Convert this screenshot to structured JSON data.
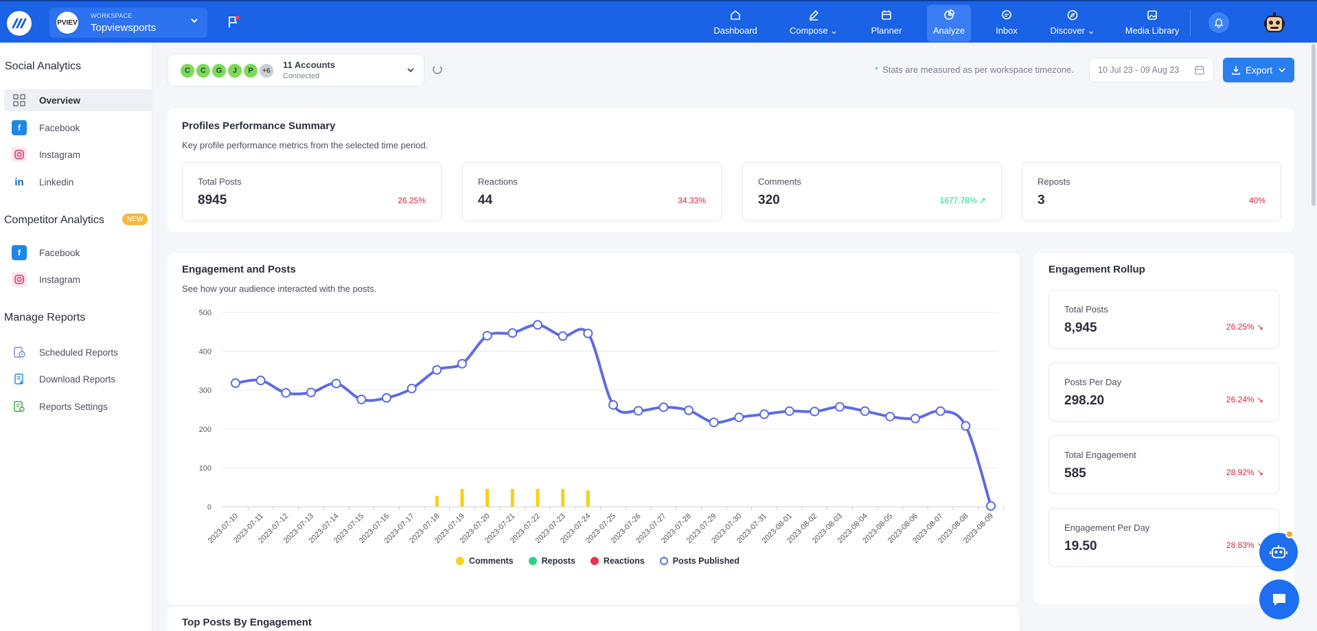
{
  "topbar": {
    "workspace_kicker": "WORKSPACE",
    "workspace_name": "Topviewsports",
    "workspace_avatar_text": "PVIEV",
    "nav": [
      {
        "label": "Dashboard",
        "icon": "home-icon"
      },
      {
        "label": "Compose",
        "icon": "pencil-icon",
        "has_dropdown": true
      },
      {
        "label": "Planner",
        "icon": "calendar-icon"
      },
      {
        "label": "Analyze",
        "icon": "analytics-icon",
        "active": true
      },
      {
        "label": "Inbox",
        "icon": "chat-bubble-icon"
      },
      {
        "label": "Discover",
        "icon": "compass-icon",
        "has_dropdown": true
      },
      {
        "label": "Media Library",
        "icon": "image-icon"
      }
    ],
    "color": "#1a62e6"
  },
  "sidebar": {
    "social_title": "Social Analytics",
    "social_items": [
      {
        "label": "Overview",
        "icon": "grid-icon",
        "active": true
      },
      {
        "label": "Facebook",
        "icon": "facebook-icon"
      },
      {
        "label": "Instagram",
        "icon": "instagram-icon"
      },
      {
        "label": "Linkedin",
        "icon": "linkedin-icon"
      }
    ],
    "competitor_title": "Competitor Analytics",
    "competitor_badge": "NEW",
    "competitor_items": [
      {
        "label": "Facebook",
        "icon": "facebook-icon"
      },
      {
        "label": "Instagram",
        "icon": "instagram-icon"
      }
    ],
    "reports_title": "Manage Reports",
    "report_items": [
      {
        "label": "Scheduled Reports",
        "icon": "scheduled-report-icon"
      },
      {
        "label": "Download Reports",
        "icon": "download-report-icon"
      },
      {
        "label": "Reports Settings",
        "icon": "report-settings-icon"
      }
    ]
  },
  "accounts": {
    "chips": [
      "C",
      "C",
      "G",
      "J",
      "P",
      "+6"
    ],
    "title": "11 Accounts",
    "subtitle": "Connected"
  },
  "toolbar": {
    "tz_note": "Stats are measured as per workspace timezone.",
    "date_range": "10 Jul 23 - 09 Aug 23",
    "export_label": "Export"
  },
  "summary": {
    "title": "Profiles Performance Summary",
    "subtitle": "Key profile performance metrics from the selected time period.",
    "metrics": [
      {
        "label": "Total Posts",
        "value": "8945",
        "change": "26.25%",
        "trend": "down"
      },
      {
        "label": "Reactions",
        "value": "44",
        "change": "34.33%",
        "trend": "down"
      },
      {
        "label": "Comments",
        "value": "320",
        "change": "1677.78% ↗",
        "trend": "up"
      },
      {
        "label": "Reposts",
        "value": "3",
        "change": "40%",
        "trend": "down"
      }
    ]
  },
  "engagement": {
    "title": "Engagement and Posts",
    "subtitle": "See how your audience interacted with the posts.",
    "legend": [
      {
        "label": "Comments",
        "color": "#f7d117"
      },
      {
        "label": "Reposts",
        "color": "#2fd08b"
      },
      {
        "label": "Reactions",
        "color": "#e8334e"
      },
      {
        "label": "Posts Published",
        "color": "#5f6bdf"
      }
    ]
  },
  "rollup": {
    "title": "Engagement Rollup",
    "items": [
      {
        "label": "Total Posts",
        "value": "8,945",
        "change": "26.25% ↘"
      },
      {
        "label": "Posts Per Day",
        "value": "298.20",
        "change": "26.24% ↘"
      },
      {
        "label": "Total Engagement",
        "value": "585",
        "change": "28.92% ↘"
      },
      {
        "label": "Engagement Per Day",
        "value": "19.50",
        "change": "28.83% ↘"
      }
    ]
  },
  "top_posts_title": "Top Posts By Engagement",
  "chart_data": {
    "type": "line",
    "x": [
      "2023-07-10",
      "2023-07-11",
      "2023-07-12",
      "2023-07-13",
      "2023-07-14",
      "2023-07-15",
      "2023-07-16",
      "2023-07-17",
      "2023-07-18",
      "2023-07-19",
      "2023-07-20",
      "2023-07-21",
      "2023-07-22",
      "2023-07-23",
      "2023-07-24",
      "2023-07-25",
      "2023-07-26",
      "2023-07-27",
      "2023-07-28",
      "2023-07-29",
      "2023-07-30",
      "2023-07-31",
      "2023-08-01",
      "2023-08-02",
      "2023-08-03",
      "2023-08-04",
      "2023-08-05",
      "2023-08-06",
      "2023-08-07",
      "2023-08-08",
      "2023-08-09"
    ],
    "ylim": [
      0,
      500
    ],
    "yticks": [
      0,
      100,
      200,
      300,
      400,
      500
    ],
    "series": [
      {
        "name": "Posts Published",
        "kind": "line",
        "color": "#5f6bdf",
        "values": [
          318,
          325,
          293,
          294,
          317,
          276,
          280,
          304,
          352,
          368,
          440,
          447,
          468,
          439,
          446,
          262,
          247,
          256,
          248,
          217,
          230,
          238,
          246,
          245,
          257,
          246,
          232,
          227,
          246,
          208,
          2
        ]
      },
      {
        "name": "Comments",
        "kind": "bar",
        "color": "#f7d117",
        "values": [
          0,
          0,
          0,
          0,
          0,
          0,
          0,
          0,
          28,
          46,
          46,
          46,
          46,
          46,
          42,
          0,
          0,
          0,
          0,
          0,
          0,
          0,
          0,
          0,
          0,
          0,
          0,
          0,
          0,
          0,
          0
        ]
      },
      {
        "name": "Reposts",
        "kind": "bar",
        "color": "#2fd08b",
        "values": [
          0,
          0,
          0,
          0,
          0,
          0,
          0,
          0,
          0,
          0,
          0,
          0,
          0,
          0,
          0,
          0,
          0,
          0,
          0,
          0,
          0,
          0,
          0,
          0,
          0,
          0,
          0,
          0,
          0,
          0,
          0
        ]
      },
      {
        "name": "Reactions",
        "kind": "bar",
        "color": "#e8334e",
        "values": [
          0,
          0,
          0,
          0,
          0,
          0,
          0,
          0,
          0,
          0,
          0,
          0,
          0,
          0,
          0,
          0,
          0,
          0,
          0,
          0,
          0,
          0,
          0,
          0,
          0,
          0,
          0,
          0,
          0,
          0,
          0
        ]
      }
    ]
  }
}
